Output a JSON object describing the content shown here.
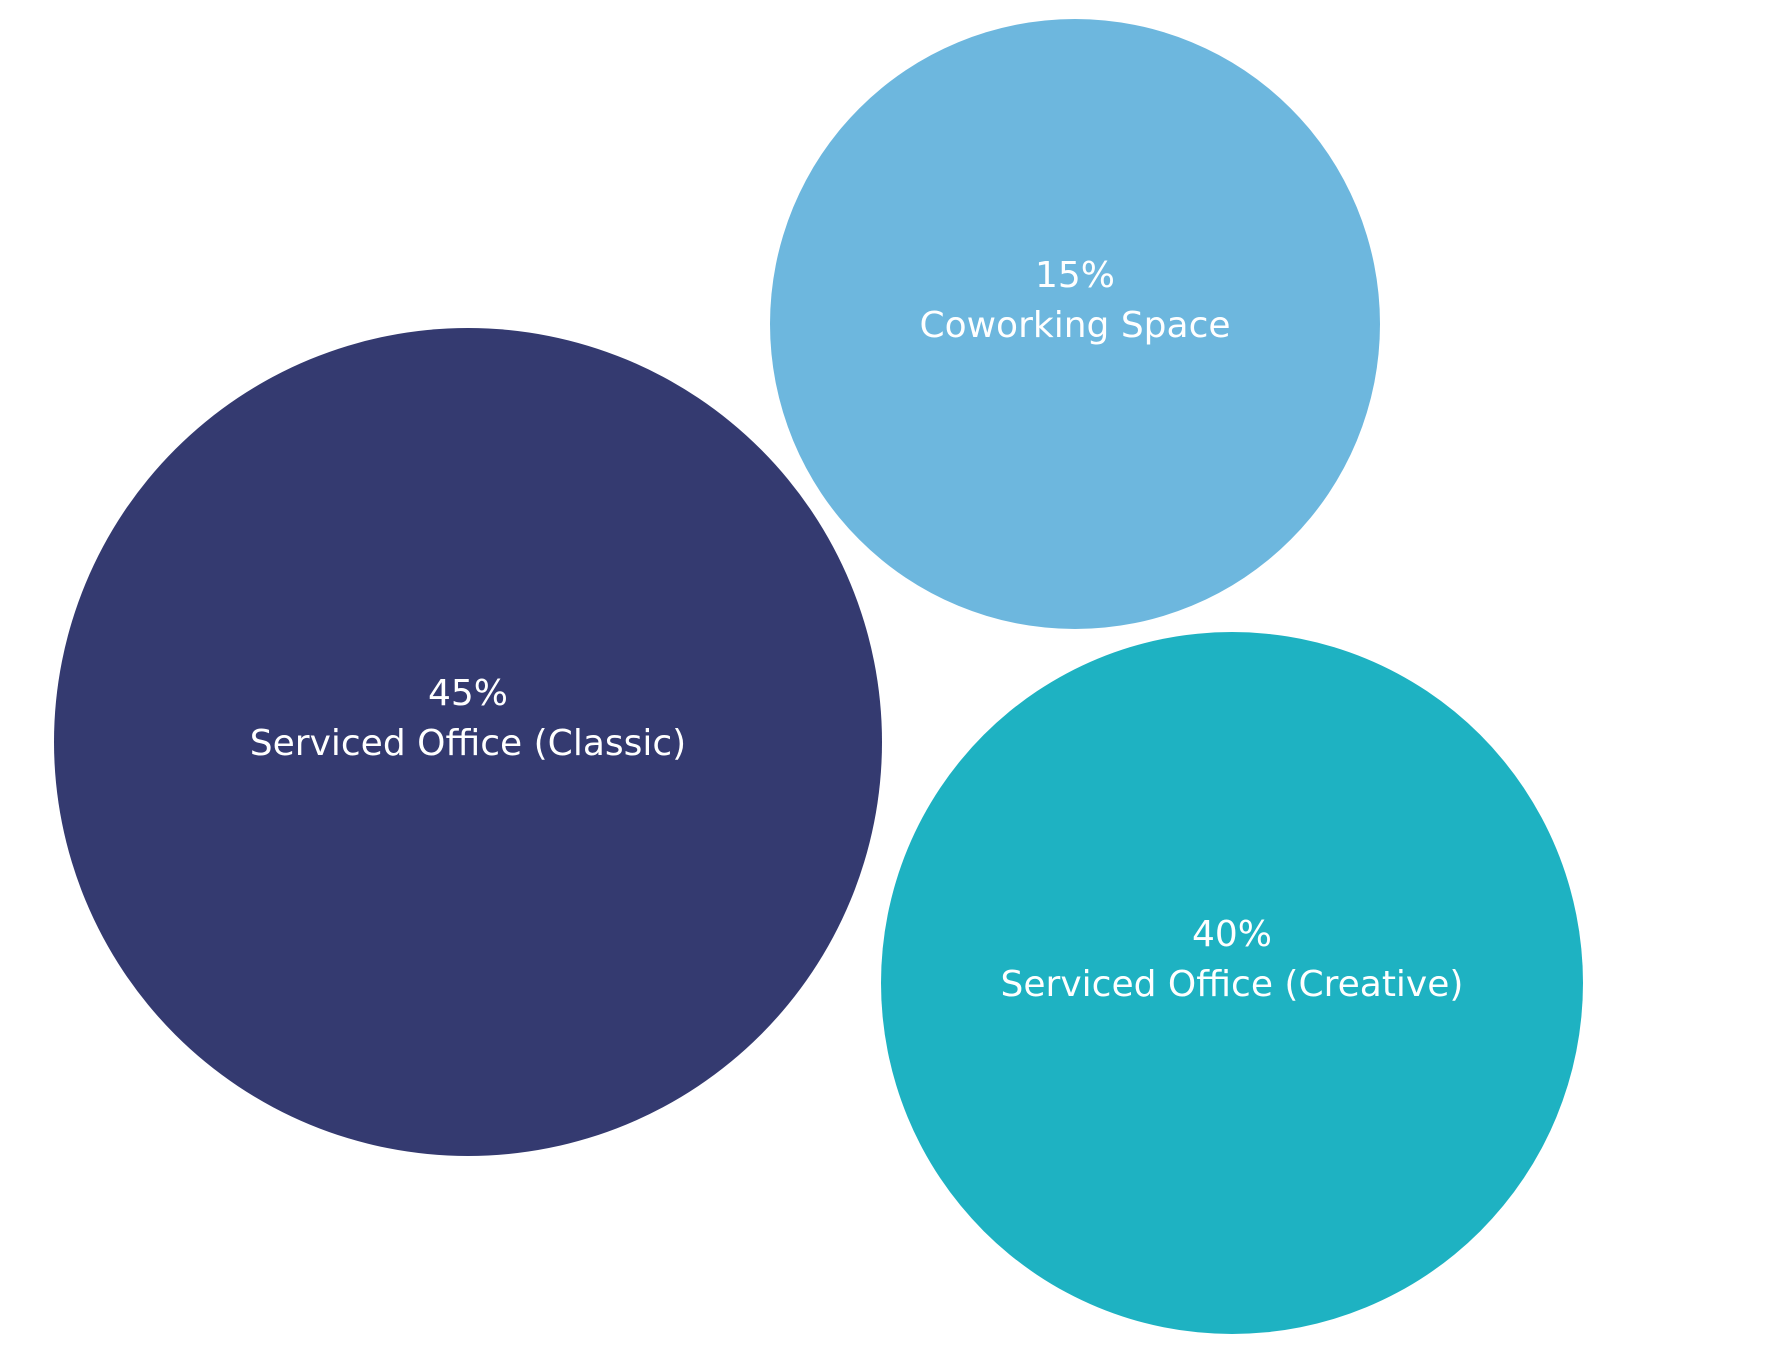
{
  "chart_data": {
    "type": "bubble",
    "title": "",
    "items": [
      {
        "label": "Serviced Office (Classic)",
        "value": 45,
        "value_label": "45%",
        "color": "#343a70"
      },
      {
        "label": "Coworking Space",
        "value": 15,
        "value_label": "15%",
        "color": "#6db7de"
      },
      {
        "label": "Serviced Office (Creative)",
        "value": 40,
        "value_label": "40%",
        "color": "#1eb2c2"
      }
    ]
  }
}
